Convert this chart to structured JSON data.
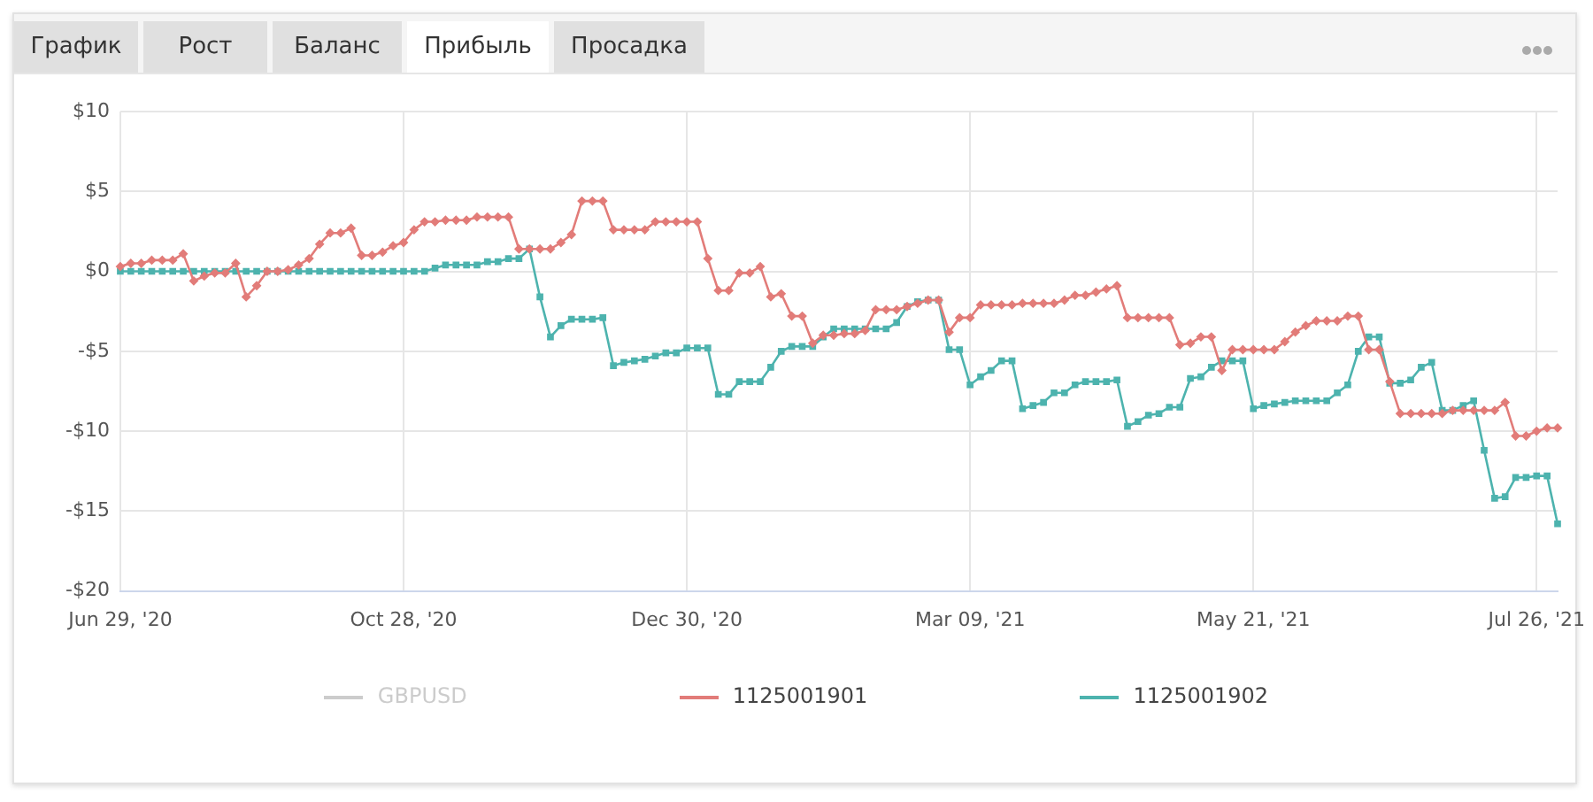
{
  "chart_data": {
    "type": "line",
    "annotations": [
      "График",
      "Рост",
      "Баланс",
      "Прибыль",
      "Просадка"
    ],
    "categories": [
      "Jun 29, '20",
      null,
      null,
      null,
      null,
      null,
      null,
      null,
      null,
      null,
      null,
      null,
      null,
      null,
      null,
      null,
      null,
      null,
      null,
      null,
      null,
      null,
      null,
      null,
      null,
      null,
      null,
      "Oct 28, '20",
      null,
      null,
      null,
      null,
      null,
      null,
      null,
      null,
      null,
      null,
      null,
      null,
      null,
      null,
      null,
      null,
      null,
      null,
      null,
      null,
      null,
      null,
      null,
      null,
      null,
      null,
      "Dec 30, '20",
      null,
      null,
      null,
      null,
      null,
      null,
      null,
      null,
      null,
      null,
      null,
      null,
      null,
      null,
      null,
      null,
      null,
      null,
      null,
      null,
      null,
      null,
      null,
      null,
      null,
      null,
      "Mar 09, '21",
      null,
      null,
      null,
      null,
      null,
      null,
      null,
      null,
      null,
      null,
      null,
      null,
      null,
      null,
      null,
      null,
      null,
      null,
      null,
      null,
      null,
      null,
      null,
      null,
      null,
      null,
      "May 21, '21",
      null,
      null,
      null,
      null,
      null,
      null,
      null,
      null,
      null,
      null,
      null,
      null,
      null,
      null,
      null,
      null,
      null,
      null,
      null,
      null,
      null,
      null,
      null,
      null,
      null,
      null,
      "Jul 26, '21",
      null,
      null
    ],
    "series": [
      {
        "name": "GBPUSD",
        "color": "#cccccc",
        "values": [
          null,
          null,
          null,
          null,
          null,
          null,
          null,
          null,
          null,
          null,
          null,
          null,
          null,
          null,
          null,
          null,
          null,
          null,
          null,
          null,
          null,
          null,
          null,
          null,
          null,
          null,
          null,
          null,
          null,
          null,
          null,
          null,
          null,
          null,
          null,
          null,
          null,
          null,
          null,
          null,
          null,
          null,
          null,
          null,
          null,
          null,
          null,
          null,
          null,
          null,
          null,
          null,
          null,
          null,
          null,
          null,
          null,
          null,
          null,
          null,
          null,
          null,
          null,
          null,
          null,
          null,
          null,
          null,
          null,
          null,
          null,
          null,
          null,
          null,
          null,
          null,
          null,
          null,
          null,
          null,
          null,
          null,
          null,
          null,
          null,
          null,
          null,
          null,
          null,
          null,
          null,
          null,
          null,
          null,
          null,
          null,
          null,
          null,
          null,
          null,
          null,
          null,
          null,
          null,
          null,
          null,
          null,
          null,
          null,
          null,
          null,
          null,
          null,
          null,
          null,
          null,
          null,
          null,
          null,
          null,
          null,
          null,
          null,
          null,
          null,
          null,
          null,
          null,
          null,
          null,
          null,
          null,
          null,
          null,
          null,
          null,
          null,
          null
        ]
      },
      {
        "name": "1125001901",
        "color": "#e27c79",
        "marker": "diamond",
        "values": [
          0.3,
          0.5,
          0.5,
          0.7,
          0.7,
          0.7,
          1.1,
          -0.6,
          -0.3,
          -0.1,
          -0.1,
          0.5,
          -1.6,
          -0.9,
          0,
          0,
          0.1,
          0.4,
          0.8,
          1.7,
          2.4,
          2.4,
          2.7,
          1.0,
          1.0,
          1.2,
          1.6,
          1.8,
          2.6,
          3.1,
          3.1,
          3.2,
          3.2,
          3.2,
          3.4,
          3.4,
          3.4,
          3.4,
          1.4,
          1.4,
          1.4,
          1.4,
          1.8,
          2.3,
          4.4,
          4.4,
          4.4,
          2.6,
          2.6,
          2.6,
          2.6,
          3.1,
          3.1,
          3.1,
          3.1,
          3.1,
          0.8,
          -1.2,
          -1.2,
          -0.1,
          -0.1,
          0.3,
          -1.6,
          -1.4,
          -2.8,
          -2.8,
          -4.5,
          -4.0,
          -4.0,
          -3.9,
          -3.9,
          -3.7,
          -2.4,
          -2.4,
          -2.4,
          -2.2,
          -2.0,
          -1.8,
          -1.8,
          -3.8,
          -2.9,
          -2.9,
          -2.1,
          -2.1,
          -2.1,
          -2.1,
          -2.0,
          -2.0,
          -2.0,
          -2.0,
          -1.8,
          -1.5,
          -1.5,
          -1.3,
          -1.1,
          -0.9,
          -2.9,
          -2.9,
          -2.9,
          -2.9,
          -2.9,
          -4.6,
          -4.5,
          -4.1,
          -4.1,
          -6.2,
          -4.9,
          -4.9,
          -4.9,
          -4.9,
          -4.9,
          -4.4,
          -3.8,
          -3.4,
          -3.1,
          -3.1,
          -3.1,
          -2.8,
          -2.8,
          -4.9,
          -4.9,
          -6.9,
          -8.9,
          -8.9,
          -8.9,
          -8.9,
          -8.9,
          -8.7,
          -8.7,
          -8.7,
          -8.7,
          -8.7,
          -8.2,
          -10.3,
          -10.3,
          -10.0,
          -9.8,
          -9.8
        ]
      },
      {
        "name": "1125001902",
        "color": "#4db3ae",
        "marker": "square",
        "values": [
          0,
          0,
          0,
          0,
          0,
          0,
          0,
          0,
          0,
          0,
          0,
          0,
          0,
          0,
          0,
          0,
          0,
          0,
          0,
          0,
          0,
          0,
          0,
          0,
          0,
          0,
          0,
          0,
          0,
          0,
          0.2,
          0.4,
          0.4,
          0.4,
          0.4,
          0.6,
          0.6,
          0.8,
          0.8,
          1.4,
          -1.6,
          -4.1,
          -3.4,
          -3.0,
          -3.0,
          -3.0,
          -2.9,
          -5.9,
          -5.7,
          -5.6,
          -5.5,
          -5.3,
          -5.1,
          -5.1,
          -4.8,
          -4.8,
          -4.8,
          -7.7,
          -7.7,
          -6.9,
          -6.9,
          -6.9,
          -6.0,
          -5.0,
          -4.7,
          -4.7,
          -4.7,
          -4.1,
          -3.6,
          -3.6,
          -3.6,
          -3.6,
          -3.6,
          -3.6,
          -3.2,
          -2.2,
          -1.9,
          -1.8,
          -1.8,
          -4.9,
          -4.9,
          -7.1,
          -6.6,
          -6.2,
          -5.6,
          -5.6,
          -8.6,
          -8.4,
          -8.2,
          -7.6,
          -7.6,
          -7.1,
          -6.9,
          -6.9,
          -6.9,
          -6.8,
          -9.7,
          -9.4,
          -9.0,
          -8.9,
          -8.5,
          -8.5,
          -6.7,
          -6.6,
          -6.0,
          -5.6,
          -5.6,
          -5.6,
          -8.6,
          -8.4,
          -8.3,
          -8.2,
          -8.1,
          -8.1,
          -8.1,
          -8.1,
          -7.6,
          -7.1,
          -5.0,
          -4.1,
          -4.1,
          -7.0,
          -7.0,
          -6.8,
          -6.0,
          -5.7,
          -8.7,
          -8.7,
          -8.4,
          -8.1,
          -11.2,
          -14.2,
          -14.1,
          -12.9,
          -12.9,
          -12.8,
          -12.8,
          -15.8
        ]
      }
    ],
    "ylim": [
      -20,
      10
    ],
    "yticks": [
      {
        "value": -20,
        "label": "-$20"
      },
      {
        "value": -15,
        "label": "-$15"
      },
      {
        "value": -10,
        "label": "-$10"
      },
      {
        "value": -5,
        "label": "-$5"
      },
      {
        "value": 0,
        "label": "$0"
      },
      {
        "value": 5,
        "label": "$5"
      },
      {
        "value": 10,
        "label": "$10"
      }
    ],
    "grid": true,
    "legend": "bottom",
    "line_style": "solid"
  }
}
